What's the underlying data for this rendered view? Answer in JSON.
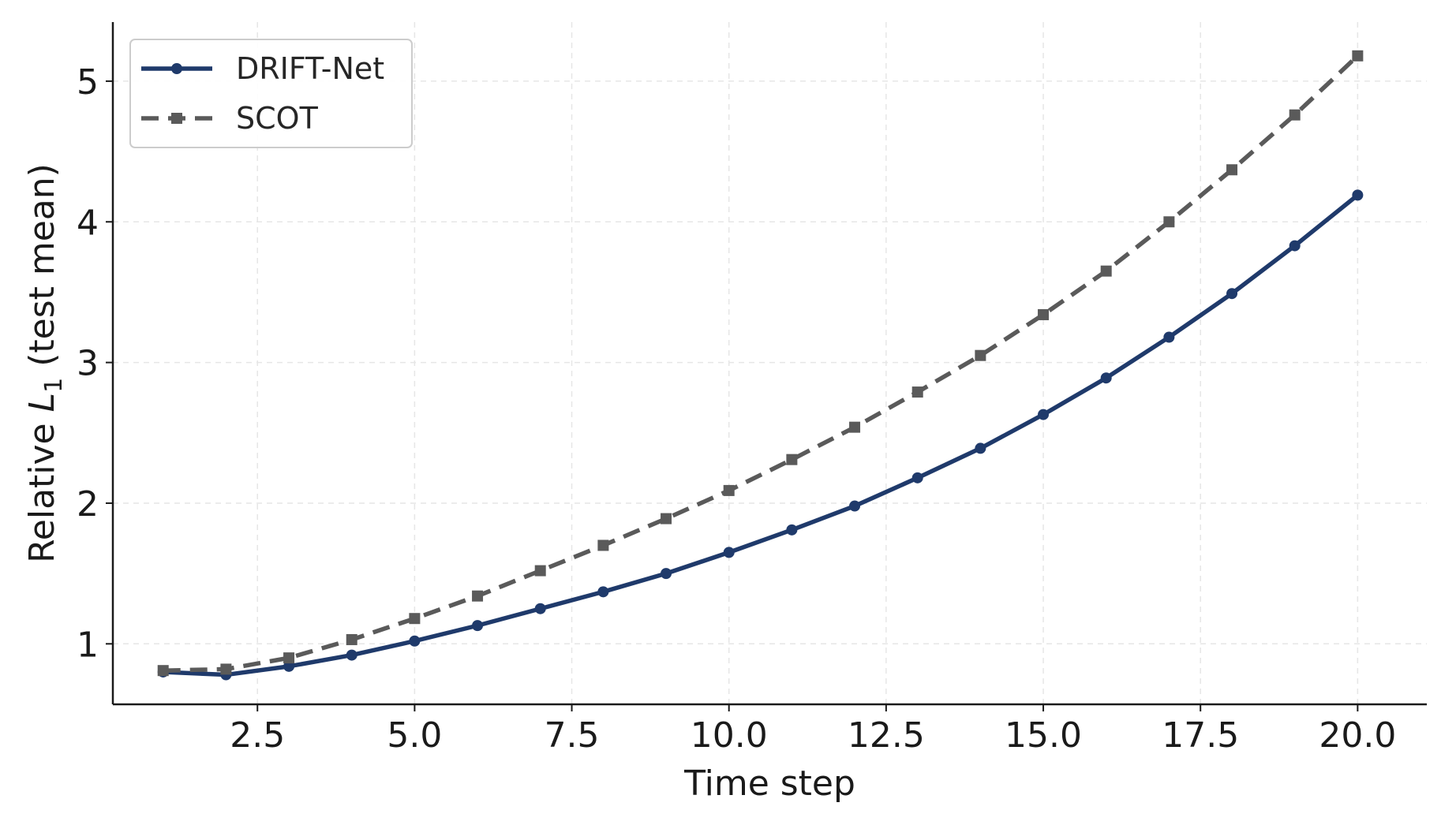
{
  "chart_data": {
    "type": "line",
    "xlabel": "Time step",
    "ylabel": {
      "prefix": "Relative ",
      "symbol": "L",
      "subscript": "1",
      "suffix": " (test mean)"
    },
    "xlim": [
      0.2,
      21.1
    ],
    "ylim": [
      0.57,
      5.42
    ],
    "xticks": [
      2.5,
      5.0,
      7.5,
      10.0,
      12.5,
      15.0,
      17.5,
      20.0
    ],
    "xtick_labels": [
      "2.5",
      "5.0",
      "7.5",
      "10.0",
      "12.5",
      "15.0",
      "17.5",
      "20.0"
    ],
    "yticks": [
      1,
      2,
      3,
      4,
      5
    ],
    "ytick_labels": [
      "1",
      "2",
      "3",
      "4",
      "5"
    ],
    "grid": true,
    "legend_position": "top-left",
    "x": [
      1,
      2,
      3,
      4,
      5,
      6,
      7,
      8,
      9,
      10,
      11,
      12,
      13,
      14,
      15,
      16,
      17,
      18,
      19,
      20
    ],
    "series": [
      {
        "name": "DRIFT-Net",
        "color": "#1f3a6b",
        "line_style": "solid",
        "marker": "circle",
        "values": [
          0.8,
          0.78,
          0.84,
          0.92,
          1.02,
          1.13,
          1.25,
          1.37,
          1.5,
          1.65,
          1.81,
          1.98,
          2.18,
          2.39,
          2.63,
          2.89,
          3.18,
          3.49,
          3.83,
          4.19
        ]
      },
      {
        "name": "SCOT",
        "color": "#5a5a5a",
        "line_style": "dashed",
        "marker": "square",
        "values": [
          0.81,
          0.82,
          0.9,
          1.03,
          1.18,
          1.34,
          1.52,
          1.7,
          1.89,
          2.09,
          2.31,
          2.54,
          2.79,
          3.05,
          3.34,
          3.65,
          4.0,
          4.37,
          4.76,
          5.18
        ]
      }
    ]
  }
}
